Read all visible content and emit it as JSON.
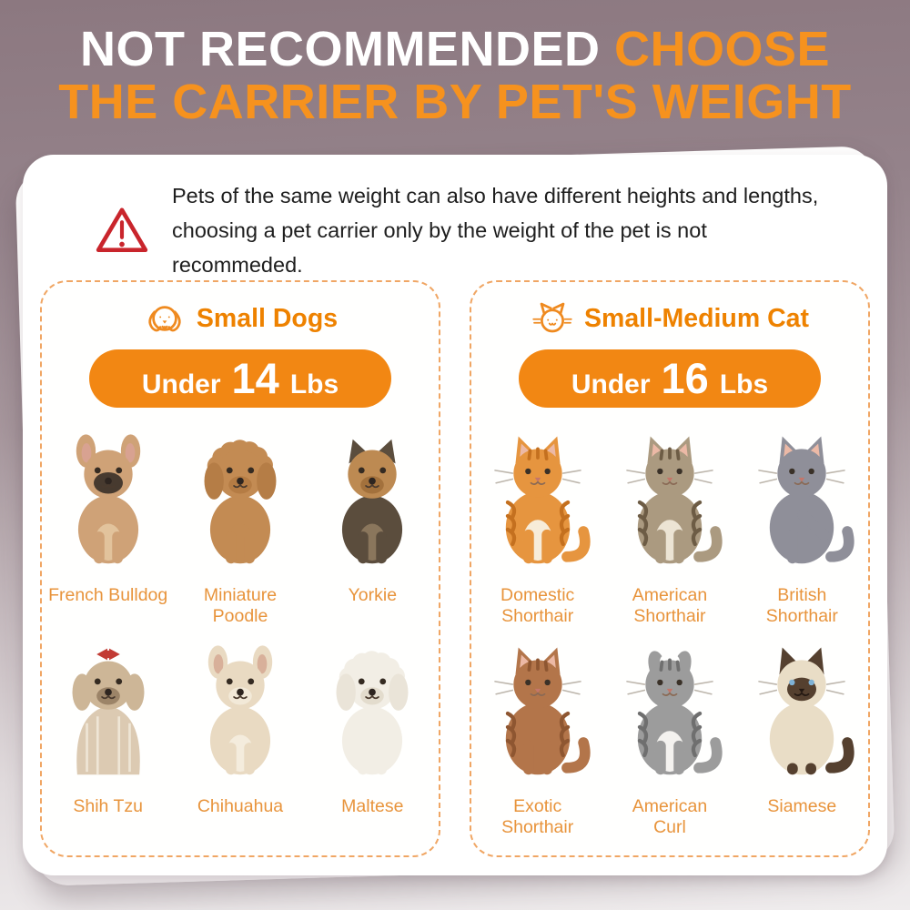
{
  "title": {
    "line1_white": "NOT RECOMMENDED ",
    "line1_orange": "CHOOSE",
    "line2": "THE CARRIER BY PET'S WEIGHT",
    "white_color": "#ffffff",
    "orange_color": "#f6921e"
  },
  "warning": {
    "icon": "warning-triangle-icon",
    "icon_color": "#c9252c",
    "line1": "Pets of the same weight can also have different heights and lengths,",
    "line2": "choosing a pet carrier only by the weight of the pet is not recommeded."
  },
  "theme": {
    "pill_orange": "#f28713",
    "panel_title_orange": "#ee8200",
    "label_orange": "#e8943c",
    "dashed_border_orange": "#f0a664",
    "card_white": "#ffffff",
    "background_top": "#8c7880",
    "background_bottom": "#efeced"
  },
  "panels": [
    {
      "icon": "dog-face-icon",
      "title": "Small Dogs",
      "badge": {
        "prefix": "Under",
        "value": "14",
        "suffix": "Lbs"
      },
      "pets": [
        {
          "name": "French Bulldog",
          "art": {
            "kind": "dog",
            "body": "#cfa277",
            "head": "#cfa277",
            "muzzle": "#473a2f",
            "chest": "#e2c39c",
            "ears": "bat",
            "inner": "#d8a291",
            "mask": true
          }
        },
        {
          "name": "Miniature Poodle",
          "art": {
            "kind": "dog",
            "body": "#c38b53",
            "head": "#c38b53",
            "muzzle": "#b57c44",
            "chest": "#c38b53",
            "ears": "floppy",
            "earcolor": "#b57d46",
            "fluffy": true
          }
        },
        {
          "name": "Yorkie",
          "art": {
            "kind": "dog",
            "body": "#5b4d3d",
            "head": "#bd8a52",
            "muzzle": "#a3713c",
            "chest": "#8a765c",
            "ears": "up",
            "earcolor": "#5b4d3d"
          }
        },
        {
          "name": "Shih Tzu",
          "art": {
            "kind": "dog",
            "body": "#dccab2",
            "head": "#cdb697",
            "muzzle": "#9c8468",
            "ears": "floppy",
            "earcolor": "#cdb697",
            "longhair": true,
            "hair": "#efe6d6",
            "bow": "#c23b34"
          }
        },
        {
          "name": "Chihuahua",
          "art": {
            "kind": "dog",
            "body": "#e9dac2",
            "head": "#e9dac2",
            "muzzle": "#f2e9d8",
            "chest": "#f4ecdd",
            "ears": "bat",
            "inner": "#d8b09a"
          }
        },
        {
          "name": "Maltese",
          "art": {
            "kind": "dog",
            "body": "#f2eee5",
            "head": "#f2eee5",
            "muzzle": "#e3dccd",
            "chest": "#f2eee5",
            "ears": "floppy",
            "earcolor": "#eae4d8",
            "fluffy": true
          }
        }
      ]
    },
    {
      "icon": "cat-face-icon",
      "title": "Small-Medium Cat",
      "badge": {
        "prefix": "Under",
        "value": "16",
        "suffix": "Lbs"
      },
      "pets": [
        {
          "name": "Domestic\nShorthair",
          "art": {
            "kind": "cat",
            "body": "#e6953f",
            "chest": "#f7ecd9",
            "dark": "#c4701f",
            "stripes": true
          }
        },
        {
          "name": "American\nShorthair",
          "art": {
            "kind": "cat",
            "body": "#ab9a80",
            "chest": "#ece4d4",
            "dark": "#6d5c45",
            "stripes": true
          }
        },
        {
          "name": "British\nShorthair",
          "art": {
            "kind": "cat",
            "body": "#8f8f99",
            "dark": "#7a7a85",
            "raisedPaw": true
          }
        },
        {
          "name": "Exotic\nShorthair",
          "art": {
            "kind": "cat",
            "body": "#b3754a",
            "dark": "#8e5631",
            "stripes": true
          }
        },
        {
          "name": "American\nCurl",
          "art": {
            "kind": "cat",
            "body": "#9c9c9c",
            "chest": "#f4f2ef",
            "dark": "#6f6f6f",
            "stripes": true,
            "ears": "curl"
          }
        },
        {
          "name": "Siamese",
          "art": {
            "kind": "cat",
            "body": "#e9ddc6",
            "dark": "#55402f",
            "mask": true
          }
        }
      ]
    }
  ]
}
